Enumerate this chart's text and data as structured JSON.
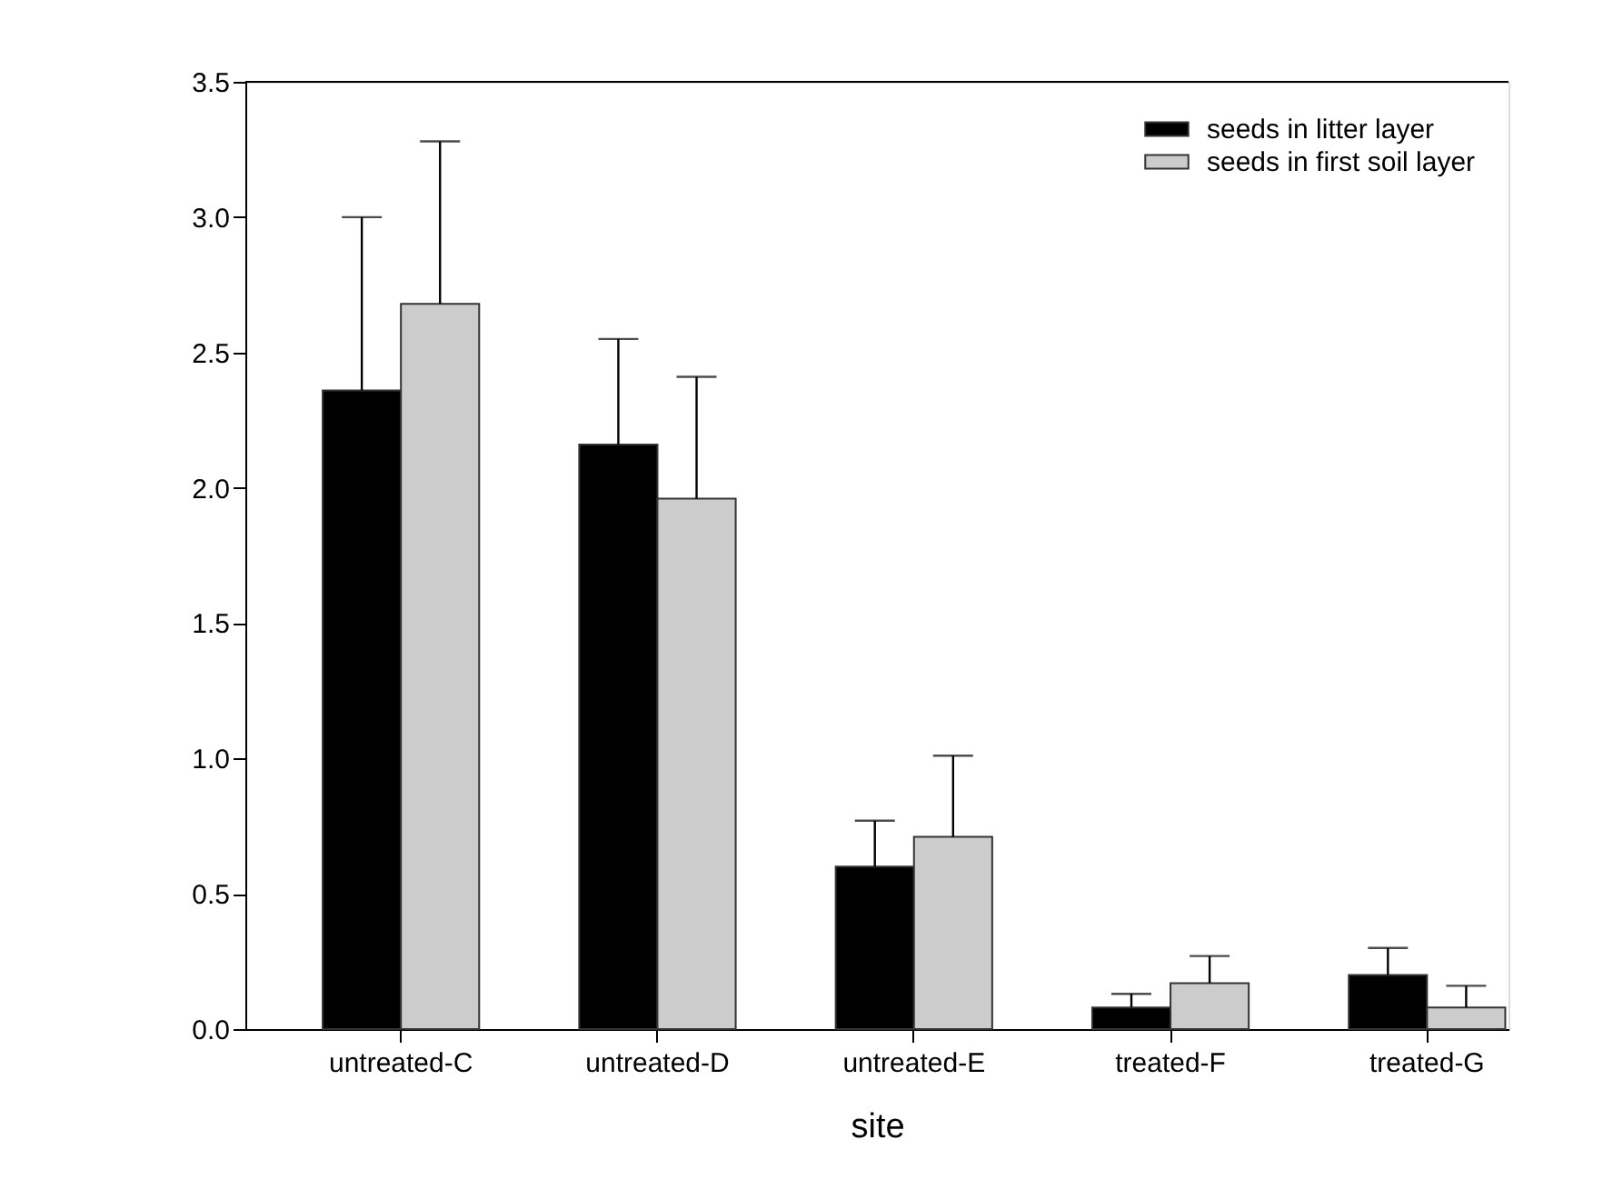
{
  "chart_data": {
    "type": "bar",
    "xlabel": "site",
    "categories": [
      "untreated-C",
      "untreated-D",
      "untreated-E",
      "treated-F",
      "treated-G"
    ],
    "series": [
      {
        "name": "seeds in litter layer",
        "color": "#000000",
        "values": [
          2.36,
          2.16,
          0.6,
          0.08,
          0.2
        ],
        "errors": [
          [
            2.36,
            3.0
          ],
          [
            2.16,
            2.55
          ],
          [
            0.6,
            0.77
          ],
          [
            0.08,
            0.13
          ],
          [
            0.2,
            0.3
          ]
        ]
      },
      {
        "name": "seeds in first soil layer",
        "color": "#cccccc",
        "values": [
          2.68,
          1.96,
          0.71,
          0.17,
          0.08
        ],
        "errors": [
          [
            2.68,
            3.28
          ],
          [
            1.96,
            2.41
          ],
          [
            0.71,
            1.01
          ],
          [
            0.17,
            0.27
          ],
          [
            0.08,
            0.16
          ]
        ]
      }
    ],
    "ylim": [
      0,
      3.5
    ],
    "yticks": [
      {
        "value": 0,
        "label": "0.0"
      },
      0.5,
      {
        "value": 1,
        "label": "1.0"
      },
      1.5,
      {
        "value": 2,
        "label": "2.0"
      },
      2.5,
      {
        "value": 3,
        "label": "3.0"
      },
      3.5
    ],
    "grid": false,
    "legend": "top right"
  }
}
